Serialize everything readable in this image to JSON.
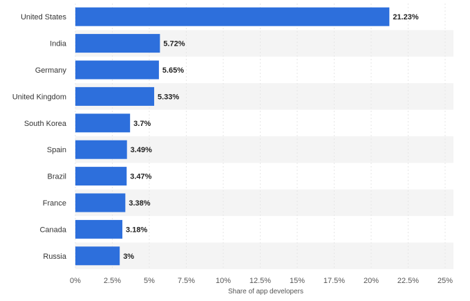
{
  "chart_data": {
    "type": "bar",
    "orientation": "horizontal",
    "categories": [
      "United States",
      "India",
      "Germany",
      "United Kingdom",
      "South Korea",
      "Spain",
      "Brazil",
      "France",
      "Canada",
      "Russia"
    ],
    "values": [
      21.23,
      5.72,
      5.65,
      5.33,
      3.7,
      3.49,
      3.47,
      3.38,
      3.18,
      3
    ],
    "value_labels": [
      "21.23%",
      "5.72%",
      "5.65%",
      "5.33%",
      "3.7%",
      "3.49%",
      "3.47%",
      "3.38%",
      "3.18%",
      "3%"
    ],
    "xlabel": "Share of app developers",
    "ylabel": "",
    "xlim": [
      0,
      25
    ],
    "xticks": [
      0,
      2.5,
      5,
      7.5,
      10,
      12.5,
      15,
      17.5,
      20,
      22.5,
      25
    ],
    "xtick_labels": [
      "0%",
      "2.5%",
      "5%",
      "7.5%",
      "10%",
      "12.5%",
      "15%",
      "17.5%",
      "20%",
      "22.5%",
      "25%"
    ],
    "grid": true,
    "bar_color": "#2d6fdc",
    "band_color": "#f4f4f4"
  }
}
